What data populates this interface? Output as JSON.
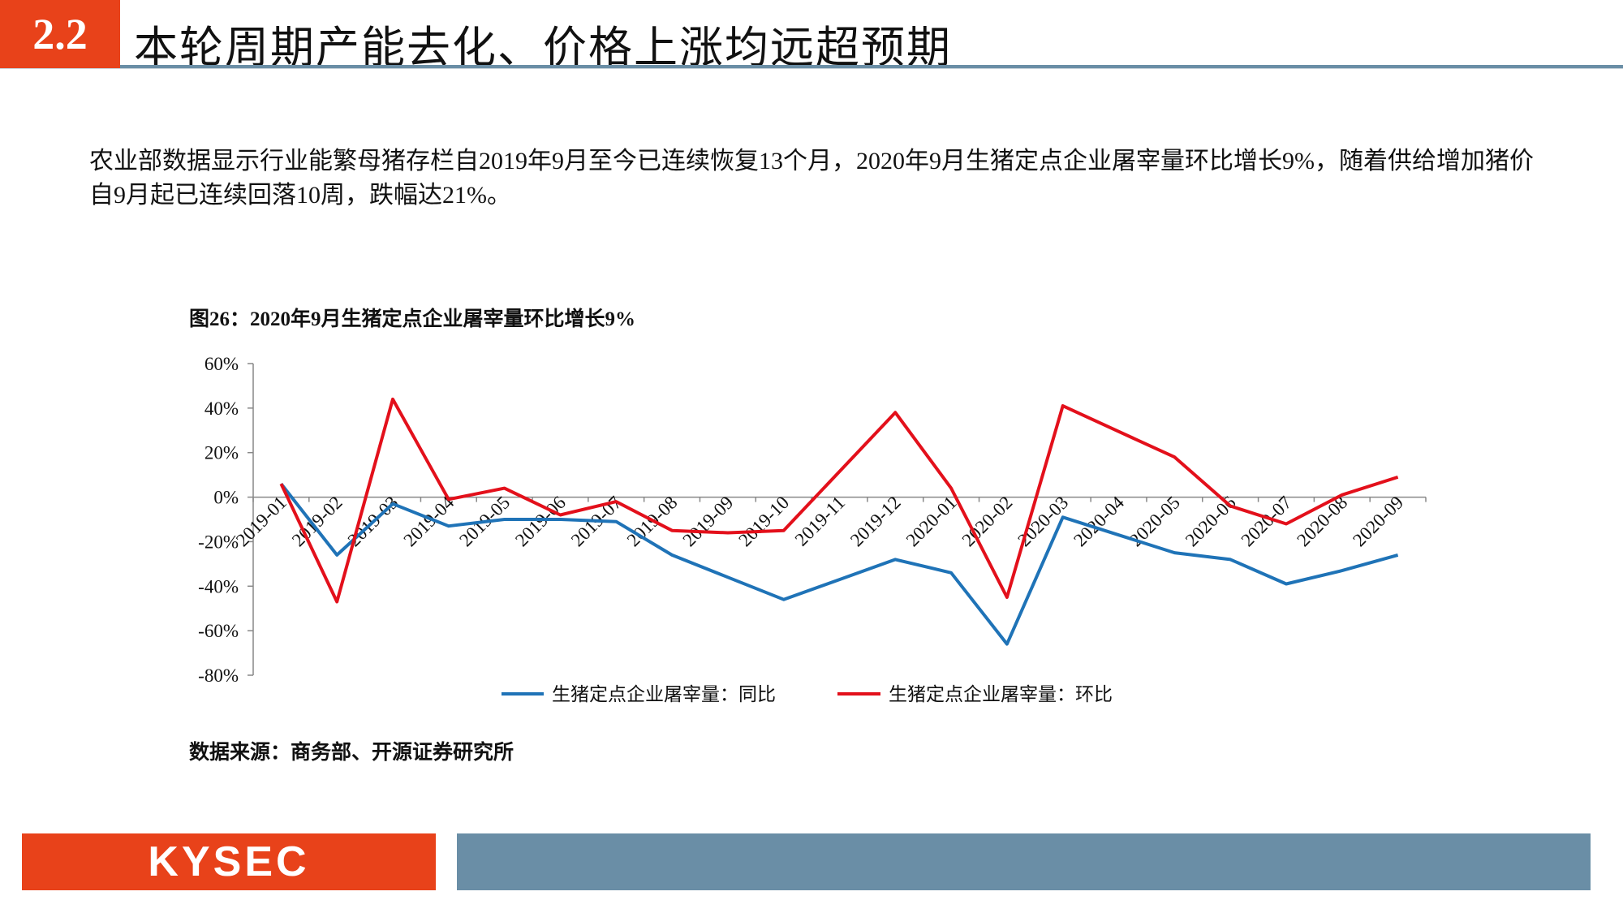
{
  "header": {
    "section_number": "2.2",
    "title": "本轮周期产能去化、价格上涨均远超预期"
  },
  "intro_text": "农业部数据显示行业能繁母猪存栏自2019年9月至今已连续恢复13个月，2020年9月生猪定点企业屠宰量环比增长9%，随着供给增加猪价自9月起已连续回落10周，跌幅达21%。",
  "chart_data": {
    "type": "line",
    "title": "图26：2020年9月生猪定点企业屠宰量环比增长9%",
    "categories": [
      "2019-01",
      "2019-02",
      "2019-03",
      "2019-04",
      "2019-05",
      "2019-06",
      "2019-07",
      "2019-08",
      "2019-09",
      "2019-10",
      "2019-11",
      "2019-12",
      "2020-01",
      "2020-02",
      "2020-03",
      "2020-04",
      "2020-05",
      "2020-06",
      "2020-07",
      "2020-08",
      "2020-09"
    ],
    "y_ticks": [
      "60%",
      "40%",
      "20%",
      "0%",
      "-20%",
      "-40%",
      "-60%",
      "-80%"
    ],
    "ylim": [
      -80,
      60
    ],
    "series": [
      {
        "name": "生猪定点企业屠宰量：同比",
        "color": "#1f73b7",
        "values": [
          6,
          -26,
          -3,
          -13,
          -10,
          -10,
          -11,
          -26,
          -36,
          -46,
          null,
          -28,
          -34,
          -66,
          -9,
          -17,
          -25,
          -28,
          -39,
          -33,
          -26
        ]
      },
      {
        "name": "生猪定点企业屠宰量：环比",
        "color": "#e3101b",
        "values": [
          6,
          -47,
          44,
          -1,
          4,
          -8,
          -2,
          -15,
          -16,
          -15,
          null,
          38,
          4,
          -45,
          41,
          null,
          18,
          -4,
          -12,
          1,
          9
        ]
      }
    ],
    "legend_position": "bottom",
    "grid": false
  },
  "source_text": "数据来源：商务部、开源证券研究所",
  "footer": {
    "logo_text": "KYSEC"
  },
  "colors": {
    "accent": "#e8421a",
    "bar": "#6a8ea6"
  }
}
